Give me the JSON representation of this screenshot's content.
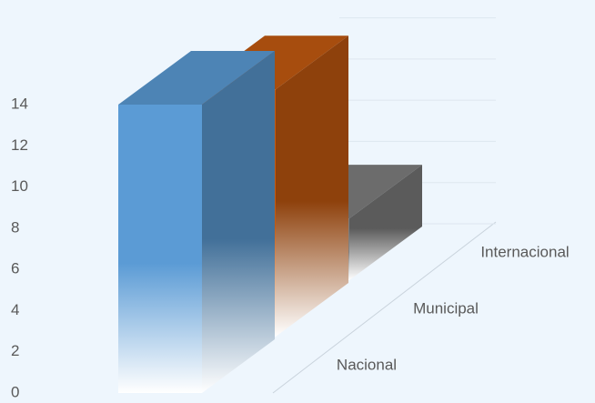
{
  "chart_data": {
    "type": "bar",
    "categories": [
      "Nacional",
      "Municipal",
      "Internacional"
    ],
    "values": [
      14,
      12,
      3
    ],
    "colors": [
      "#5b9bd5",
      "#c55a11",
      "#7f7f7f"
    ],
    "ylim": [
      0,
      14
    ],
    "yticks": [
      0,
      2,
      4,
      6,
      8,
      10,
      12,
      14
    ],
    "grid": true
  }
}
